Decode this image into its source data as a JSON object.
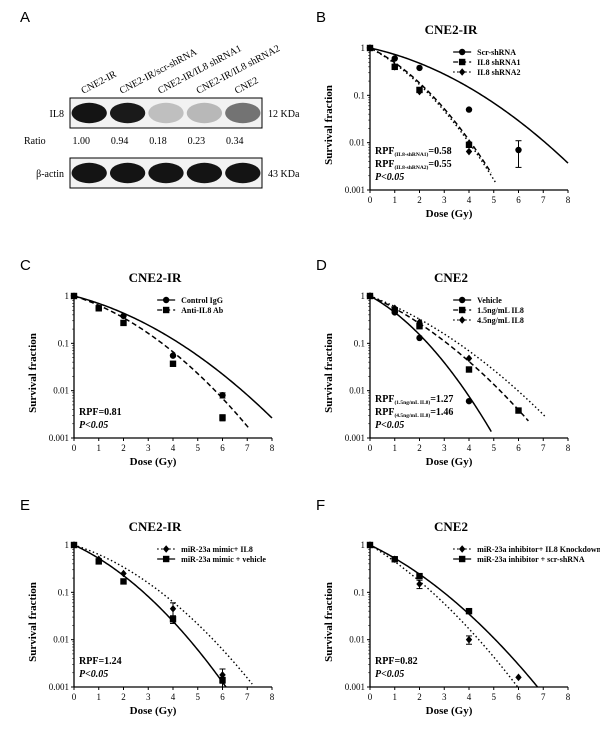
{
  "panels": {
    "A": "A",
    "B": "B",
    "C": "C",
    "D": "D",
    "E": "E",
    "F": "F"
  },
  "western_blot": {
    "lanes": [
      "CNE2-IR",
      "CNE2-IR/scr-shRNA",
      "CNE2-IR/IL8 shRNA1",
      "CNE2-IR/IL8 shRNA2",
      "CNE2"
    ],
    "bands": [
      {
        "name": "IL8",
        "size": "12 KDa",
        "intensity": [
          0.92,
          0.9,
          0.25,
          0.28,
          0.55
        ]
      },
      {
        "name": "β-actin",
        "size": "43 KDa",
        "intensity": [
          0.92,
          0.92,
          0.92,
          0.92,
          0.92
        ]
      }
    ],
    "ratio_label": "Ratio",
    "ratios": [
      "1.00",
      "0.94",
      "0.18",
      "0.23",
      "0.34"
    ]
  },
  "chart_data": [
    {
      "panel": "B",
      "type": "scatter",
      "title": "CNE2-IR",
      "xlabel": "Dose (Gy)",
      "ylabel": "Survival fraction",
      "xlim": [
        0,
        8
      ],
      "ylim": [
        0.001,
        1
      ],
      "y_scale": "log",
      "xticks": [
        "0",
        "1",
        "2",
        "3",
        "4",
        "5",
        "6",
        "7",
        "8"
      ],
      "yticks": [
        "0.001",
        "0.01",
        "0.1",
        "1"
      ],
      "legend_position": "top-right",
      "series": [
        {
          "name": "Scr-shRNA",
          "marker": "circle",
          "line": "solid",
          "x": [
            0,
            1,
            2,
            4,
            6
          ],
          "y": [
            1,
            0.6,
            0.38,
            0.05,
            0.007
          ],
          "err": [
            0,
            0,
            0,
            0,
            0.004
          ]
        },
        {
          "name": "IL8 shRNA1",
          "marker": "square",
          "line": "dashed",
          "x": [
            0,
            1,
            2,
            4
          ],
          "y": [
            1,
            0.4,
            0.13,
            0.009
          ],
          "err": [
            0,
            0,
            0,
            0
          ]
        },
        {
          "name": "IL8 shRNA2",
          "marker": "diamond",
          "line": "dotted",
          "x": [
            0,
            1,
            2,
            4
          ],
          "y": [
            1,
            0.4,
            0.12,
            0.0065
          ],
          "err": [
            0,
            0,
            0,
            0
          ]
        }
      ],
      "fits": [
        {
          "style": "solid",
          "alpha": 0.26,
          "beta": 0.055,
          "xmax": 8
        },
        {
          "style": "dashed",
          "alpha": 0.58,
          "beta": 0.135,
          "xmax": 4.9
        },
        {
          "style": "dotted",
          "alpha": 0.63,
          "beta": 0.13,
          "xmax": 5.1
        }
      ],
      "annotations": [
        {
          "main": "RPF",
          "sub": "(IL8-shRNA1)",
          "rest": "=0.58"
        },
        {
          "main": "RPF",
          "sub": "(IL8-shRNA2)",
          "rest": "=0.55"
        },
        {
          "main": "",
          "sub": "",
          "rest": "P<0.05",
          "italic": true
        }
      ]
    },
    {
      "panel": "C",
      "type": "scatter",
      "title": "CNE2-IR",
      "xlabel": "Dose (Gy)",
      "ylabel": "Survival fraction",
      "xlim": [
        0,
        8
      ],
      "ylim": [
        0.001,
        1
      ],
      "y_scale": "log",
      "xticks": [
        "0",
        "1",
        "2",
        "3",
        "4",
        "5",
        "6",
        "7",
        "8"
      ],
      "yticks": [
        "0.001",
        "0.01",
        "0.1",
        "1"
      ],
      "legend_position": "top-right",
      "series": [
        {
          "name": "Control IgG",
          "marker": "circle",
          "line": "solid",
          "x": [
            0,
            1,
            2,
            4,
            6
          ],
          "y": [
            1,
            0.55,
            0.38,
            0.055,
            0.008
          ],
          "err": [
            0,
            0,
            0,
            0,
            0.001
          ]
        },
        {
          "name": "Anti-IL8 Ab",
          "marker": "square",
          "line": "dashed",
          "x": [
            0,
            1,
            2,
            4,
            6
          ],
          "y": [
            1,
            0.55,
            0.27,
            0.037,
            0.0027
          ],
          "err": [
            0,
            0,
            0,
            0,
            0.0004
          ]
        }
      ],
      "fits": [
        {
          "style": "solid",
          "alpha": 0.31,
          "beta": 0.054,
          "xmax": 8
        },
        {
          "style": "dashed",
          "alpha": 0.38,
          "beta": 0.075,
          "xmax": 7.1
        }
      ],
      "annotations": [
        {
          "main": "",
          "sub": "",
          "rest": "RPF=0.81"
        },
        {
          "main": "",
          "sub": "",
          "rest": "P<0.05",
          "italic": true
        }
      ]
    },
    {
      "panel": "D",
      "type": "scatter",
      "title": "CNE2",
      "xlabel": "Dose (Gy)",
      "ylabel": "Survival fraction",
      "xlim": [
        0,
        8
      ],
      "ylim": [
        0.001,
        1
      ],
      "y_scale": "log",
      "xticks": [
        "0",
        "1",
        "2",
        "3",
        "4",
        "5",
        "6",
        "7",
        "8"
      ],
      "yticks": [
        "0.001",
        "0.01",
        "0.1",
        "1"
      ],
      "legend_position": "top-right",
      "series": [
        {
          "name": "Vehicle",
          "marker": "circle",
          "line": "solid",
          "x": [
            0,
            1,
            2,
            4
          ],
          "y": [
            1,
            0.45,
            0.13,
            0.006
          ],
          "err": [
            0,
            0,
            0,
            0
          ]
        },
        {
          "name": "1.5ng/mL IL8",
          "marker": "square",
          "line": "dashed",
          "x": [
            0,
            1,
            2,
            4,
            6
          ],
          "y": [
            1,
            0.5,
            0.23,
            0.028,
            0.0038
          ],
          "err": [
            0,
            0,
            0,
            0,
            0.0004
          ]
        },
        {
          "name": "4.5ng/mL IL8",
          "marker": "diamond",
          "line": "dotted",
          "x": [
            0,
            1,
            2,
            4
          ],
          "y": [
            1,
            0.55,
            0.28,
            0.048
          ],
          "err": [
            0,
            0,
            0,
            0
          ]
        }
      ],
      "fits": [
        {
          "style": "solid",
          "alpha": 0.66,
          "beta": 0.14,
          "xmax": 4.9
        },
        {
          "style": "dashed",
          "alpha": 0.54,
          "beta": 0.064,
          "xmax": 6.4
        },
        {
          "style": "dotted",
          "alpha": 0.46,
          "beta": 0.052,
          "xmax": 7.1
        }
      ],
      "annotations": [
        {
          "main": "RPF",
          "sub": "(1.5ng/mL IL8)",
          "rest": "=1.27"
        },
        {
          "main": "RPF",
          "sub": "(4.5ng/mL IL8)",
          "rest": "=1.46"
        },
        {
          "main": "",
          "sub": "",
          "rest": "P<0.05",
          "italic": true
        }
      ]
    },
    {
      "panel": "E",
      "type": "scatter",
      "title": "CNE2-IR",
      "xlabel": "Dose (Gy)",
      "ylabel": "Survival fraction",
      "xlim": [
        0,
        8
      ],
      "ylim": [
        0.001,
        1
      ],
      "y_scale": "log",
      "xticks": [
        "0",
        "1",
        "2",
        "3",
        "4",
        "5",
        "6",
        "7",
        "8"
      ],
      "yticks": [
        "0.001",
        "0.01",
        "0.1",
        "1"
      ],
      "legend_position": "top-right",
      "series": [
        {
          "name": "miR-23a mimic+ IL8",
          "marker": "diamond",
          "line": "dotted",
          "x": [
            0,
            1,
            2,
            4,
            6
          ],
          "y": [
            1,
            0.5,
            0.25,
            0.045,
            0.0018
          ],
          "err": [
            0,
            0,
            0,
            0.015,
            0.0006
          ]
        },
        {
          "name": "miR-23a mimic + vehicle",
          "marker": "square",
          "line": "solid",
          "x": [
            0,
            1,
            2,
            4,
            6
          ],
          "y": [
            1,
            0.45,
            0.17,
            0.027,
            0.0014
          ],
          "err": [
            0,
            0,
            0,
            0.005,
            0.0004
          ]
        }
      ],
      "fits": [
        {
          "style": "dotted",
          "alpha": 0.385,
          "beta": 0.077,
          "xmax": 7.2
        },
        {
          "style": "solid",
          "alpha": 0.56,
          "beta": 0.092,
          "xmax": 6.15
        }
      ],
      "annotations": [
        {
          "main": "",
          "sub": "",
          "rest": "RPF=1.24"
        },
        {
          "main": "",
          "sub": "",
          "rest": "P<0.05",
          "italic": true
        }
      ]
    },
    {
      "panel": "F",
      "type": "scatter",
      "title": "CNE2",
      "xlabel": "Dose (Gy)",
      "ylabel": "Survival fraction",
      "xlim": [
        0,
        8
      ],
      "ylim": [
        0.001,
        1
      ],
      "y_scale": "log",
      "xticks": [
        "0",
        "1",
        "2",
        "3",
        "4",
        "5",
        "6",
        "7",
        "8"
      ],
      "yticks": [
        "0.001",
        "0.01",
        "0.1",
        "1"
      ],
      "legend_position": "top-right",
      "series": [
        {
          "name": "miR-23a inhibitor+ IL8 Knockdown",
          "marker": "diamond",
          "line": "dotted",
          "x": [
            0,
            1,
            2,
            4,
            6
          ],
          "y": [
            1,
            0.5,
            0.15,
            0.01,
            0.0016
          ],
          "err": [
            0,
            0,
            0.03,
            0.002,
            0
          ]
        },
        {
          "name": "miR-23a inhibitor + scr-shRNA",
          "marker": "square",
          "line": "solid",
          "x": [
            0,
            1,
            2,
            4
          ],
          "y": [
            1,
            0.5,
            0.22,
            0.04
          ],
          "err": [
            0,
            0,
            0,
            0
          ]
        }
      ],
      "fits": [
        {
          "style": "dotted",
          "alpha": 0.74,
          "beta": 0.07,
          "xmax": 6.2
        },
        {
          "style": "solid",
          "alpha": 0.58,
          "beta": 0.065,
          "xmax": 6.85
        }
      ],
      "annotations": [
        {
          "main": "",
          "sub": "",
          "rest": "RPF=0.82"
        },
        {
          "main": "",
          "sub": "",
          "rest": "P<0.05",
          "italic": true
        }
      ]
    }
  ]
}
